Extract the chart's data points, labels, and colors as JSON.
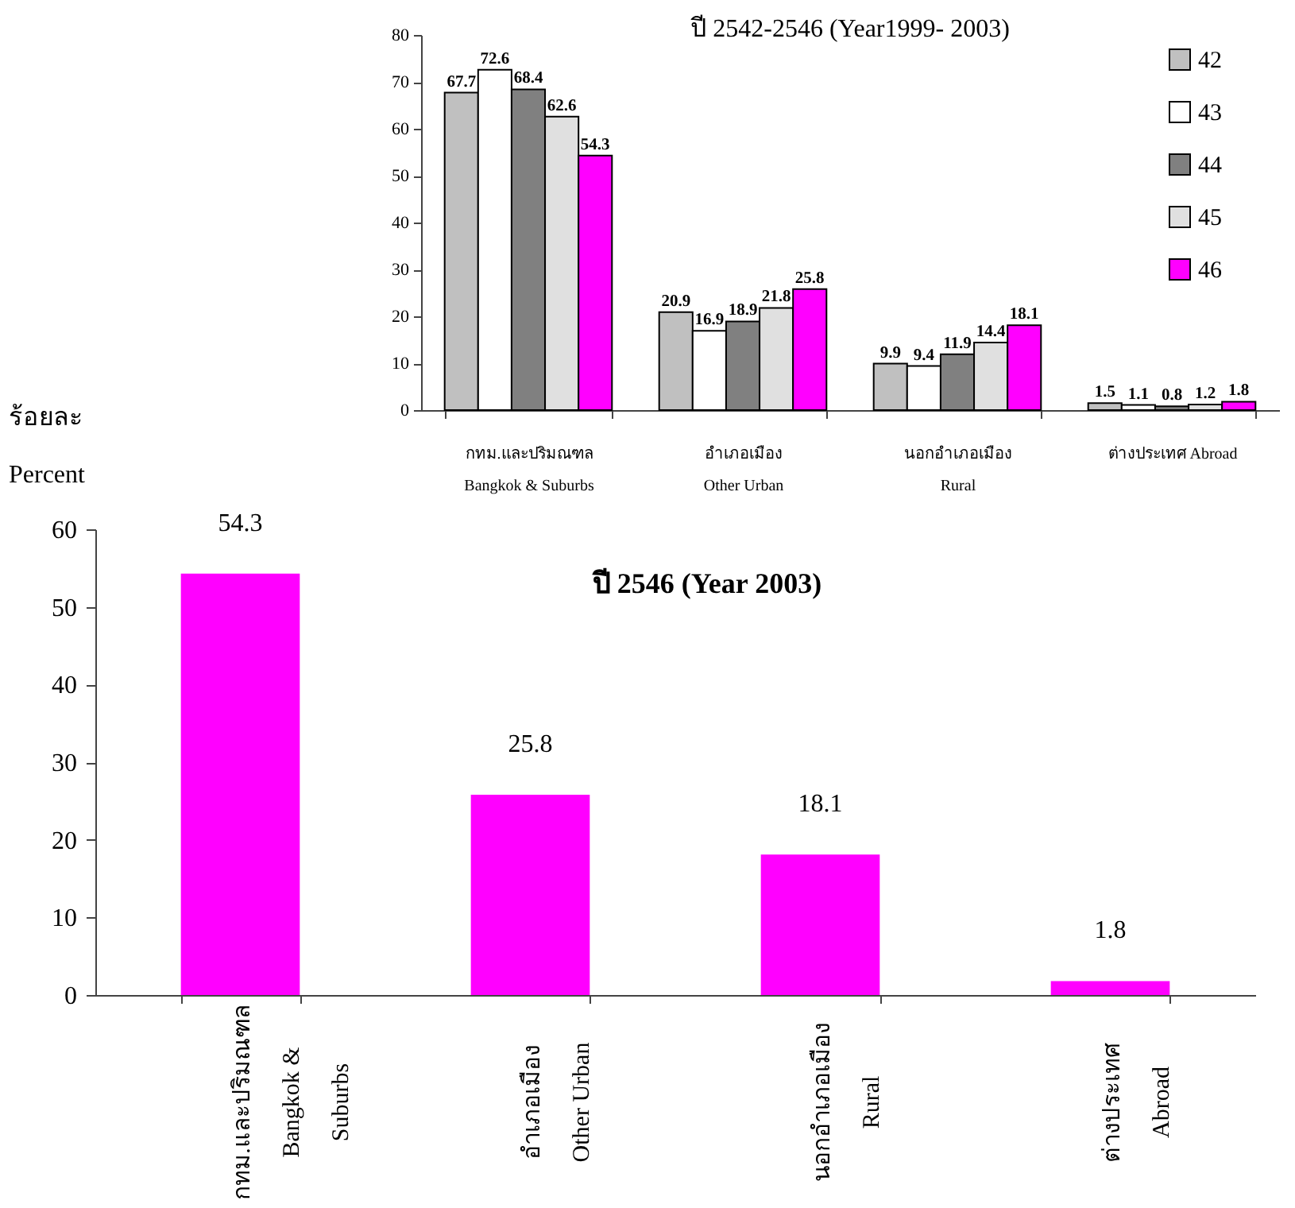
{
  "chart_data": [
    {
      "type": "bar",
      "title": "ปี 2542-2546 (Year1999- 2003)",
      "categories": [
        "กทม.และปริมณฑล\nBangkok & Suburbs",
        "อำเภอเมือง\nOther Urban",
        "นอกอำเภอเมือง\nRural",
        "ต่างประเทศ Abroad"
      ],
      "series": [
        {
          "name": "42",
          "color": "#c0c0c0",
          "values": [
            67.7,
            20.9,
            9.9,
            1.5
          ]
        },
        {
          "name": "43",
          "color": "#ffffff",
          "values": [
            72.6,
            16.9,
            9.4,
            1.1
          ]
        },
        {
          "name": "44",
          "color": "#808080",
          "values": [
            68.4,
            18.9,
            11.9,
            0.8
          ]
        },
        {
          "name": "45",
          "color": "#e0e0e0",
          "values": [
            62.6,
            21.8,
            14.4,
            1.2
          ]
        },
        {
          "name": "46",
          "color": "#ff00ff",
          "values": [
            54.3,
            25.8,
            18.1,
            1.8
          ]
        }
      ],
      "ylim": [
        0,
        80
      ],
      "yticks": [
        0,
        10,
        20,
        30,
        40,
        50,
        60,
        70,
        80
      ],
      "data_labels": true,
      "legend": "top right"
    },
    {
      "type": "bar",
      "title": "ปี 2546 (Year 2003)",
      "ylabel": "ร้อยละ\nPercent",
      "categories": [
        "กทม.และปริมณฑล\nBangkok &\nSuburbs",
        "อำเภอเมือง\nOther Urban",
        "นอกอำเภอเมือง\nRural",
        "ต่างประเทศ\nAbroad"
      ],
      "values": [
        54.3,
        25.8,
        18.1,
        1.8
      ],
      "color": "#ff00ff",
      "ylim": [
        0,
        60
      ],
      "yticks": [
        0,
        10,
        20,
        30,
        40,
        50,
        60
      ],
      "data_labels": true
    }
  ]
}
